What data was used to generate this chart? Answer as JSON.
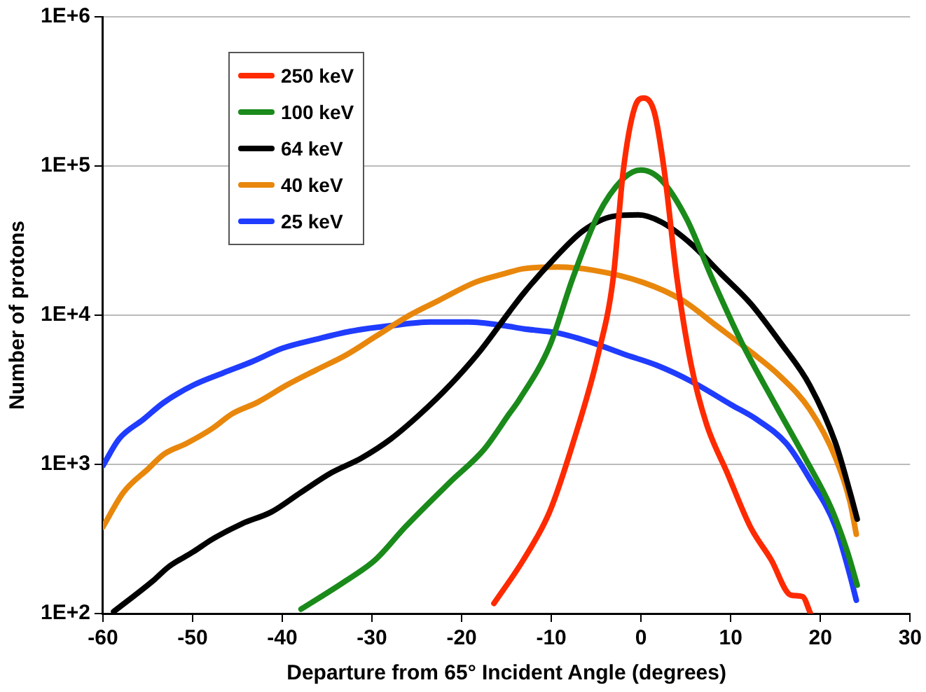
{
  "chart_data": {
    "type": "line",
    "xlabel": "Departure from 65° Incident Angle (degrees)",
    "ylabel": "Number of protons",
    "log": "y",
    "grid": "y",
    "legend": "top left",
    "marker": "none",
    "line_style": "solid",
    "xlim": [
      -60,
      30
    ],
    "xticks": [
      -60,
      -50,
      -40,
      -30,
      -20,
      -10,
      0,
      10,
      20,
      30
    ],
    "ylim": [
      100,
      1000000
    ],
    "yticks": [
      {
        "value": 100,
        "label": "1E+2"
      },
      {
        "value": 1000,
        "label": "1E+3"
      },
      {
        "value": 10000,
        "label": "1E+4"
      },
      {
        "value": 100000,
        "label": "1E+5"
      },
      {
        "value": 1000000,
        "label": "1E+6"
      }
    ],
    "series": [
      {
        "name": "250 keV",
        "color": "#ff2a00",
        "x": [
          -16.4,
          -13.1,
          -10.2,
          -7.6,
          -4.8,
          -3.1,
          -2.0,
          -0.7,
          0.3,
          1.5,
          2.6,
          4.0,
          5.6,
          7.3,
          9.6,
          12.2,
          14.5,
          16.7,
          18.0,
          18.9
        ],
        "values": [
          117,
          230,
          480,
          1380,
          5400,
          17800,
          91000,
          247000,
          285000,
          227000,
          92000,
          17800,
          4600,
          1860,
          880,
          380,
          230,
          133,
          130,
          100
        ]
      },
      {
        "name": "100 keV",
        "color": "#1a8a1a",
        "x": [
          -37.9,
          -32.9,
          -29.6,
          -26.3,
          -21.3,
          -17.5,
          -14.7,
          -13.6,
          -10.2,
          -7.6,
          -4.8,
          -2.0,
          0,
          2.3,
          5.1,
          7.9,
          11.2,
          15.0,
          18.3,
          21.2,
          23.0,
          24.1
        ],
        "values": [
          107,
          166,
          230,
          380,
          760,
          1260,
          2180,
          2700,
          6200,
          17800,
          47000,
          82000,
          94000,
          80000,
          44000,
          17800,
          6600,
          2500,
          1100,
          510,
          260,
          155
        ]
      },
      {
        "name": "64 keV",
        "color": "#000000",
        "x": [
          -58.8,
          -54.4,
          -52.7,
          -49.9,
          -47.8,
          -44.5,
          -41.2,
          -37.9,
          -34.5,
          -31.2,
          -27.9,
          -24.6,
          -21.3,
          -18.0,
          -14.7,
          -13.1,
          -9.8,
          -6.4,
          -3.1,
          -0.3,
          2.3,
          5.6,
          8.9,
          12.2,
          15.5,
          18.8,
          21.7,
          23.3,
          24.1
        ],
        "values": [
          103,
          166,
          205,
          260,
          315,
          400,
          480,
          650,
          880,
          1100,
          1480,
          2180,
          3400,
          5700,
          10500,
          14000,
          23500,
          37000,
          46000,
          47000,
          42000,
          30000,
          19000,
          12000,
          6600,
          3400,
          1380,
          650,
          430
        ]
      },
      {
        "name": "40 keV",
        "color": "#e8870c",
        "x": [
          -60,
          -57.7,
          -54.9,
          -53.2,
          -50.7,
          -47.8,
          -45.6,
          -42.8,
          -39.5,
          -36.2,
          -32.9,
          -29.6,
          -25.8,
          -22.5,
          -18.5,
          -15.2,
          -13.1,
          -9.3,
          -5.3,
          0.2,
          4.6,
          8.4,
          12.2,
          15.5,
          18.8,
          21.7,
          23.3,
          24.0
        ],
        "values": [
          380,
          650,
          940,
          1170,
          1380,
          1740,
          2180,
          2600,
          3400,
          4300,
          5400,
          7200,
          10000,
          12600,
          16600,
          19000,
          20500,
          21000,
          20000,
          16600,
          12600,
          8500,
          5700,
          3900,
          2340,
          1100,
          560,
          340
        ]
      },
      {
        "name": "25 keV",
        "color": "#1f3cff",
        "x": [
          -60,
          -58.2,
          -55.5,
          -53.2,
          -49.9,
          -46.6,
          -43.3,
          -40.0,
          -36.2,
          -32.4,
          -27.9,
          -23.5,
          -19.2,
          -15.2,
          -13.1,
          -9.3,
          -5.3,
          -2.0,
          1.8,
          5.6,
          10.1,
          12.9,
          16.2,
          18.8,
          21.7,
          23.3,
          24.0
        ],
        "values": [
          980,
          1480,
          2000,
          2600,
          3400,
          4100,
          4900,
          6000,
          6900,
          7800,
          8500,
          9000,
          9000,
          8500,
          8100,
          7600,
          6500,
          5500,
          4600,
          3600,
          2500,
          2000,
          1380,
          800,
          380,
          180,
          123
        ]
      }
    ]
  }
}
